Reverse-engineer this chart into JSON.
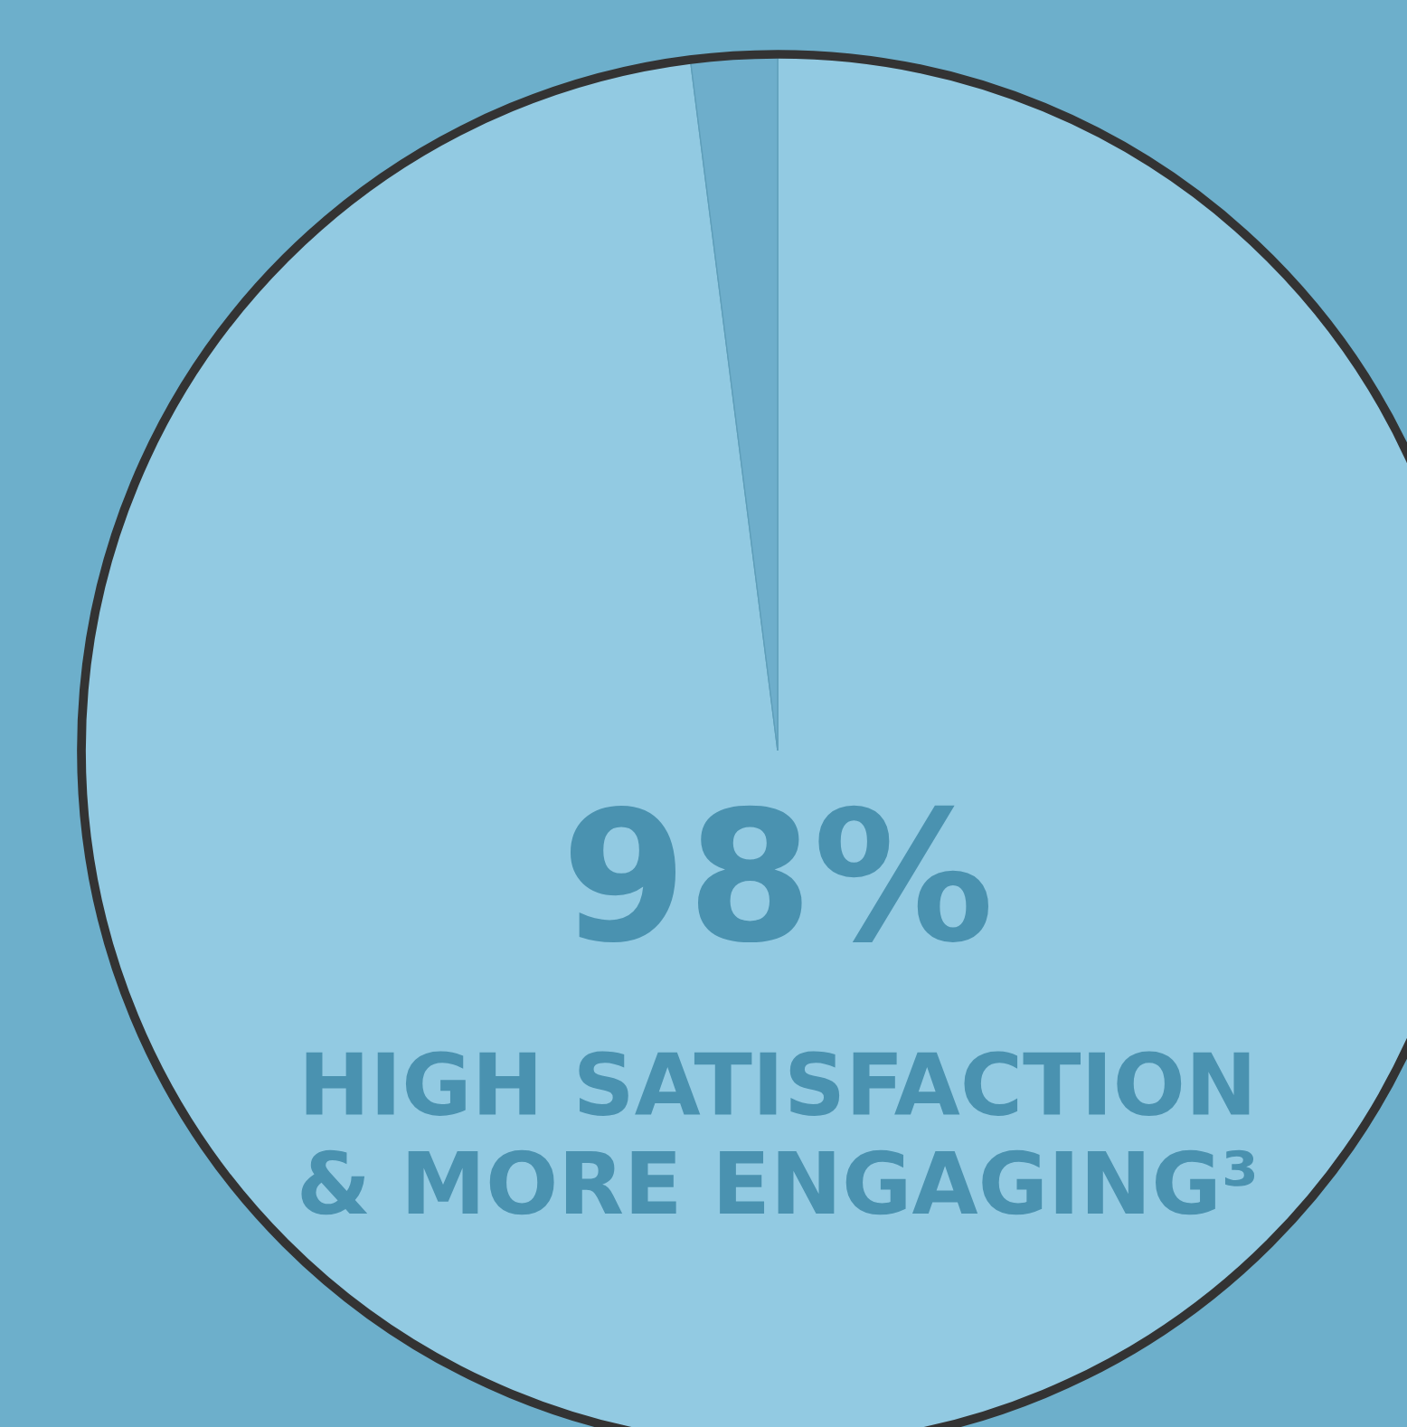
{
  "chart_data": {
    "type": "pie",
    "categories": [
      "HIGH SATISFACTION\n& MORE ENGAGING³",
      null
    ],
    "values": [
      98,
      2
    ],
    "colors": [
      "#92cae2",
      "#6eaecb"
    ],
    "value_labels": [
      "98%",
      null
    ]
  }
}
